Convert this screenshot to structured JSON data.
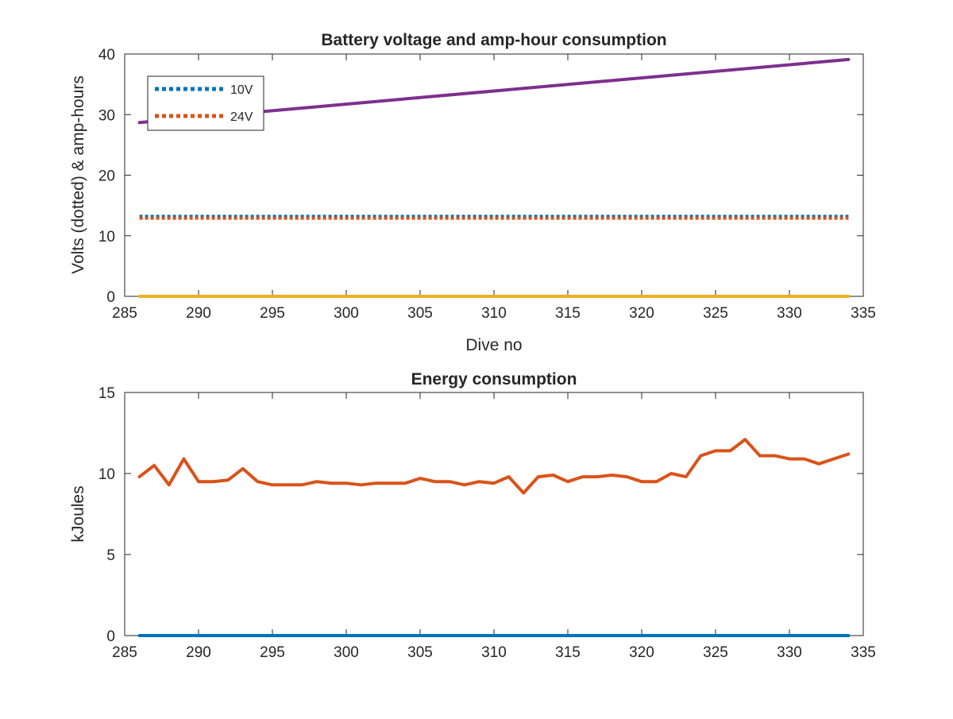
{
  "colors": {
    "blue": "#0072BD",
    "orange": "#D95319",
    "yellow": "#EDB120",
    "purple": "#7E2F8E",
    "axis": "#262626"
  },
  "chart_data": [
    {
      "type": "line",
      "title": "Battery voltage and amp-hour consumption",
      "xlabel": "Dive no",
      "ylabel": "Volts (dotted) & amp-hours",
      "xlim": [
        285,
        335
      ],
      "ylim": [
        0,
        40
      ],
      "xticks": [
        285,
        290,
        295,
        300,
        305,
        310,
        315,
        320,
        325,
        330,
        335
      ],
      "yticks": [
        0,
        10,
        20,
        30,
        40
      ],
      "grid": false,
      "legend": {
        "location": "top-left",
        "entries": [
          "10V",
          "24V"
        ]
      },
      "series": [
        {
          "name": "10V",
          "style": "dotted",
          "color": "#0072BD",
          "x": [
            286,
            334
          ],
          "y": [
            13.2,
            13.2
          ]
        },
        {
          "name": "24V",
          "style": "dotted",
          "color": "#D95319",
          "x": [
            286,
            334
          ],
          "y": [
            12.9,
            12.9
          ]
        },
        {
          "style": "solid",
          "color": "#EDB120",
          "x": [
            286,
            334
          ],
          "y": [
            0,
            0
          ]
        },
        {
          "style": "solid",
          "color": "#7E2F8E",
          "x": [
            286,
            334
          ],
          "y": [
            28.7,
            39.1
          ]
        }
      ]
    },
    {
      "type": "line",
      "title": "Energy consumption",
      "xlabel": "",
      "ylabel": "kJoules",
      "xlim": [
        285,
        335
      ],
      "ylim": [
        0,
        15
      ],
      "xticks": [
        285,
        290,
        295,
        300,
        305,
        310,
        315,
        320,
        325,
        330,
        335
      ],
      "yticks": [
        0,
        5,
        10,
        15
      ],
      "grid": false,
      "series": [
        {
          "style": "solid",
          "color": "#0072BD",
          "x": [
            286,
            334
          ],
          "y": [
            0,
            0
          ]
        },
        {
          "style": "solid",
          "color": "#D95319",
          "x": [
            286,
            287,
            288,
            289,
            290,
            291,
            292,
            293,
            294,
            295,
            296,
            297,
            298,
            299,
            300,
            301,
            302,
            303,
            304,
            305,
            306,
            307,
            308,
            309,
            310,
            311,
            312,
            313,
            314,
            315,
            316,
            317,
            318,
            319,
            320,
            321,
            322,
            323,
            324,
            325,
            326,
            327,
            328,
            329,
            330,
            331,
            332,
            333,
            334
          ],
          "y": [
            9.8,
            10.5,
            9.3,
            10.9,
            9.5,
            9.5,
            9.6,
            10.3,
            9.5,
            9.3,
            9.3,
            9.3,
            9.5,
            9.4,
            9.4,
            9.3,
            9.4,
            9.4,
            9.4,
            9.7,
            9.5,
            9.5,
            9.3,
            9.5,
            9.4,
            9.8,
            8.8,
            9.8,
            9.9,
            9.5,
            9.8,
            9.8,
            9.9,
            9.8,
            9.5,
            9.5,
            10.0,
            9.8,
            11.1,
            11.4,
            11.4,
            12.1,
            11.1,
            11.1,
            10.9,
            10.9,
            10.6,
            10.9,
            11.2
          ]
        }
      ]
    }
  ]
}
